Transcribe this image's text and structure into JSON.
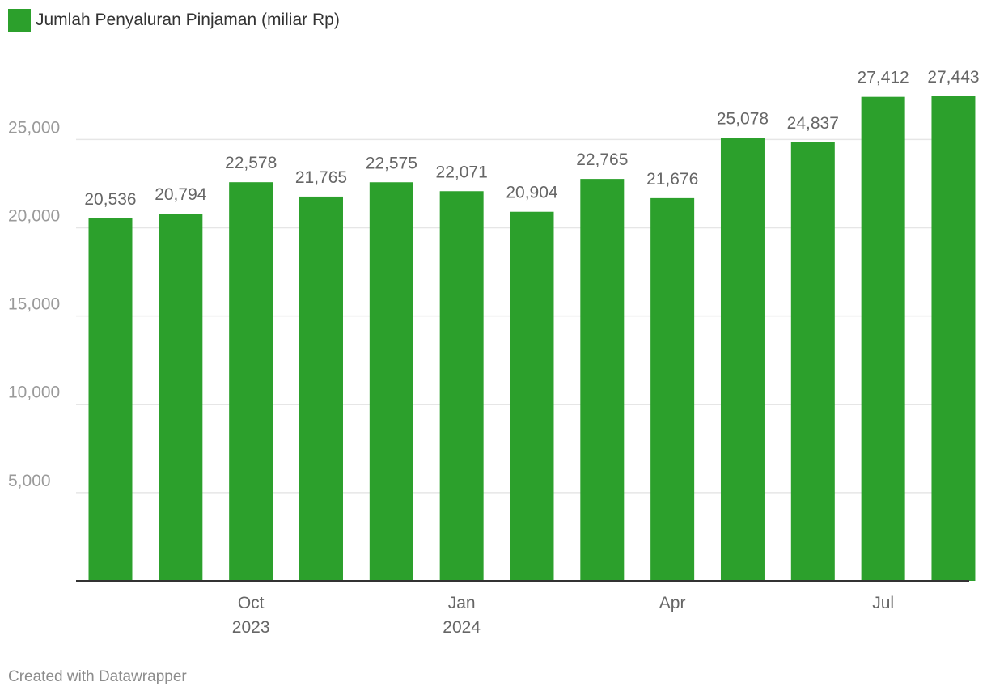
{
  "legend": {
    "label": "Jumlah Penyaluran Pinjaman (miliar Rp)",
    "color": "#2ca02c"
  },
  "footer": {
    "credit": "Created with Datawrapper"
  },
  "chart_data": {
    "type": "bar",
    "categories": [
      "2023-08",
      "2023-09",
      "2023-10",
      "2023-11",
      "2023-12",
      "2024-01",
      "2024-02",
      "2024-03",
      "2024-04",
      "2024-05",
      "2024-06",
      "2024-07",
      "2024-08"
    ],
    "series": [
      {
        "name": "Jumlah Penyaluran Pinjaman (miliar Rp)",
        "values": [
          20536,
          20794,
          22578,
          21765,
          22575,
          22071,
          20904,
          22765,
          21676,
          25078,
          24837,
          27412,
          27443
        ],
        "labels": [
          "20,536",
          "20,794",
          "22,578",
          "21,765",
          "22,575",
          "22,071",
          "20,904",
          "22,765",
          "21,676",
          "25,078",
          "24,837",
          "27,412",
          "27,443"
        ]
      }
    ],
    "y_ticks": [
      5000,
      10000,
      15000,
      20000,
      25000
    ],
    "y_tick_labels": [
      "5,000",
      "10,000",
      "15,000",
      "20,000",
      "25,000"
    ],
    "x_ticks": [
      {
        "category": "2023-10",
        "label": "Oct",
        "sublabel": "2023"
      },
      {
        "category": "2024-01",
        "label": "Jan",
        "sublabel": "2024"
      },
      {
        "category": "2024-04",
        "label": "Apr",
        "sublabel": ""
      },
      {
        "category": "2024-07",
        "label": "Jul",
        "sublabel": ""
      }
    ],
    "ylim": [
      0,
      27443
    ],
    "grid": true,
    "legend_position": "top-left",
    "colors": {
      "bar": "#2ca02c",
      "grid": "#e6e6e6",
      "axis": "#333333",
      "tick_text": "#9a9a9a",
      "value_label": "#666666",
      "x_label": "#666666"
    }
  }
}
